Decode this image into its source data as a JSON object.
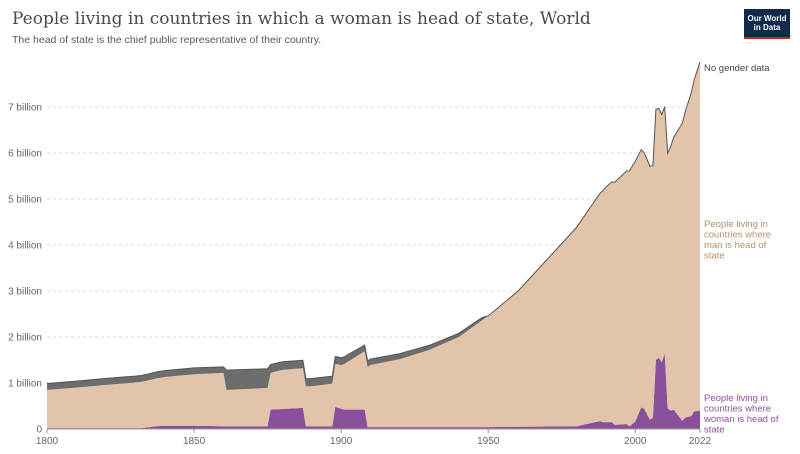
{
  "header": {
    "title": "People living in countries in which a woman is head of state, World",
    "subtitle": "The head of state is the chief public representative of their country.",
    "logo_line1": "Our World",
    "logo_line2": "in Data"
  },
  "chart_data": {
    "type": "area",
    "stacked": true,
    "title": "People living in countries in which a woman is head of state, World",
    "subtitle": "The head of state is the chief public representative of their country.",
    "xlim": [
      1800,
      2022
    ],
    "ylim": [
      0,
      8000000000
    ],
    "x_ticks": [
      "1800",
      "1850",
      "1900",
      "1950",
      "2000",
      "2022"
    ],
    "y_ticks": [
      "0",
      "1 billion",
      "2 billion",
      "3 billion",
      "4 billion",
      "5 billion",
      "6 billion",
      "7 billion"
    ],
    "grid": true,
    "legend_placement": "right, inline at series end",
    "series": [
      {
        "name": "People living in countries where woman is head of state",
        "color": "#8c4f9c",
        "x": [
          1800,
          1832,
          1835,
          1837,
          1840,
          1850,
          1860,
          1875,
          1876,
          1887,
          1888,
          1897,
          1898,
          1901,
          1902,
          1908,
          1909,
          1950,
          1960,
          1980,
          1988,
          1989,
          1992,
          1993,
          1997,
          1998,
          2000,
          2002,
          2003,
          2005,
          2006,
          2007,
          2008,
          2009,
          2010,
          2011,
          2012,
          2013,
          2016,
          2017,
          2019,
          2020,
          2022
        ],
        "values": [
          20000000,
          20000000,
          40000000,
          60000000,
          70000000,
          70000000,
          60000000,
          60000000,
          420000000,
          460000000,
          60000000,
          60000000,
          480000000,
          420000000,
          420000000,
          420000000,
          40000000,
          40000000,
          50000000,
          60000000,
          170000000,
          150000000,
          150000000,
          90000000,
          110000000,
          60000000,
          160000000,
          470000000,
          440000000,
          200000000,
          250000000,
          1500000000,
          1550000000,
          1450000000,
          1650000000,
          450000000,
          400000000,
          420000000,
          180000000,
          250000000,
          280000000,
          380000000,
          400000000
        ]
      },
      {
        "name": "People living in countries where man is head of state",
        "color": "#e2c4aa",
        "x": [
          1800,
          1810,
          1820,
          1830,
          1840,
          1850,
          1860,
          1861,
          1875,
          1876,
          1880,
          1890,
          1900,
          1910,
          1920,
          1930,
          1940,
          1950,
          1960,
          1970,
          1980,
          1990,
          2000,
          2010,
          2022
        ],
        "values": [
          830000000,
          880000000,
          940000000,
          990000000,
          1060000000,
          1120000000,
          1160000000,
          790000000,
          830000000,
          800000000,
          850000000,
          870000000,
          950000000,
          1350000000,
          1480000000,
          1680000000,
          1960000000,
          2420000000,
          2940000000,
          3630000000,
          4320000000,
          5110000000,
          5660000000,
          5360000000,
          7580000000
        ]
      },
      {
        "name": "No gender data",
        "color": "#6d6d6d",
        "x": [
          1800,
          1850,
          1860,
          1861,
          1875,
          1876,
          1900,
          1910,
          1920,
          1930,
          1940,
          1948,
          1950
        ],
        "values": [
          140000000,
          140000000,
          130000000,
          430000000,
          420000000,
          180000000,
          160000000,
          130000000,
          120000000,
          100000000,
          80000000,
          60000000,
          0
        ]
      }
    ]
  }
}
